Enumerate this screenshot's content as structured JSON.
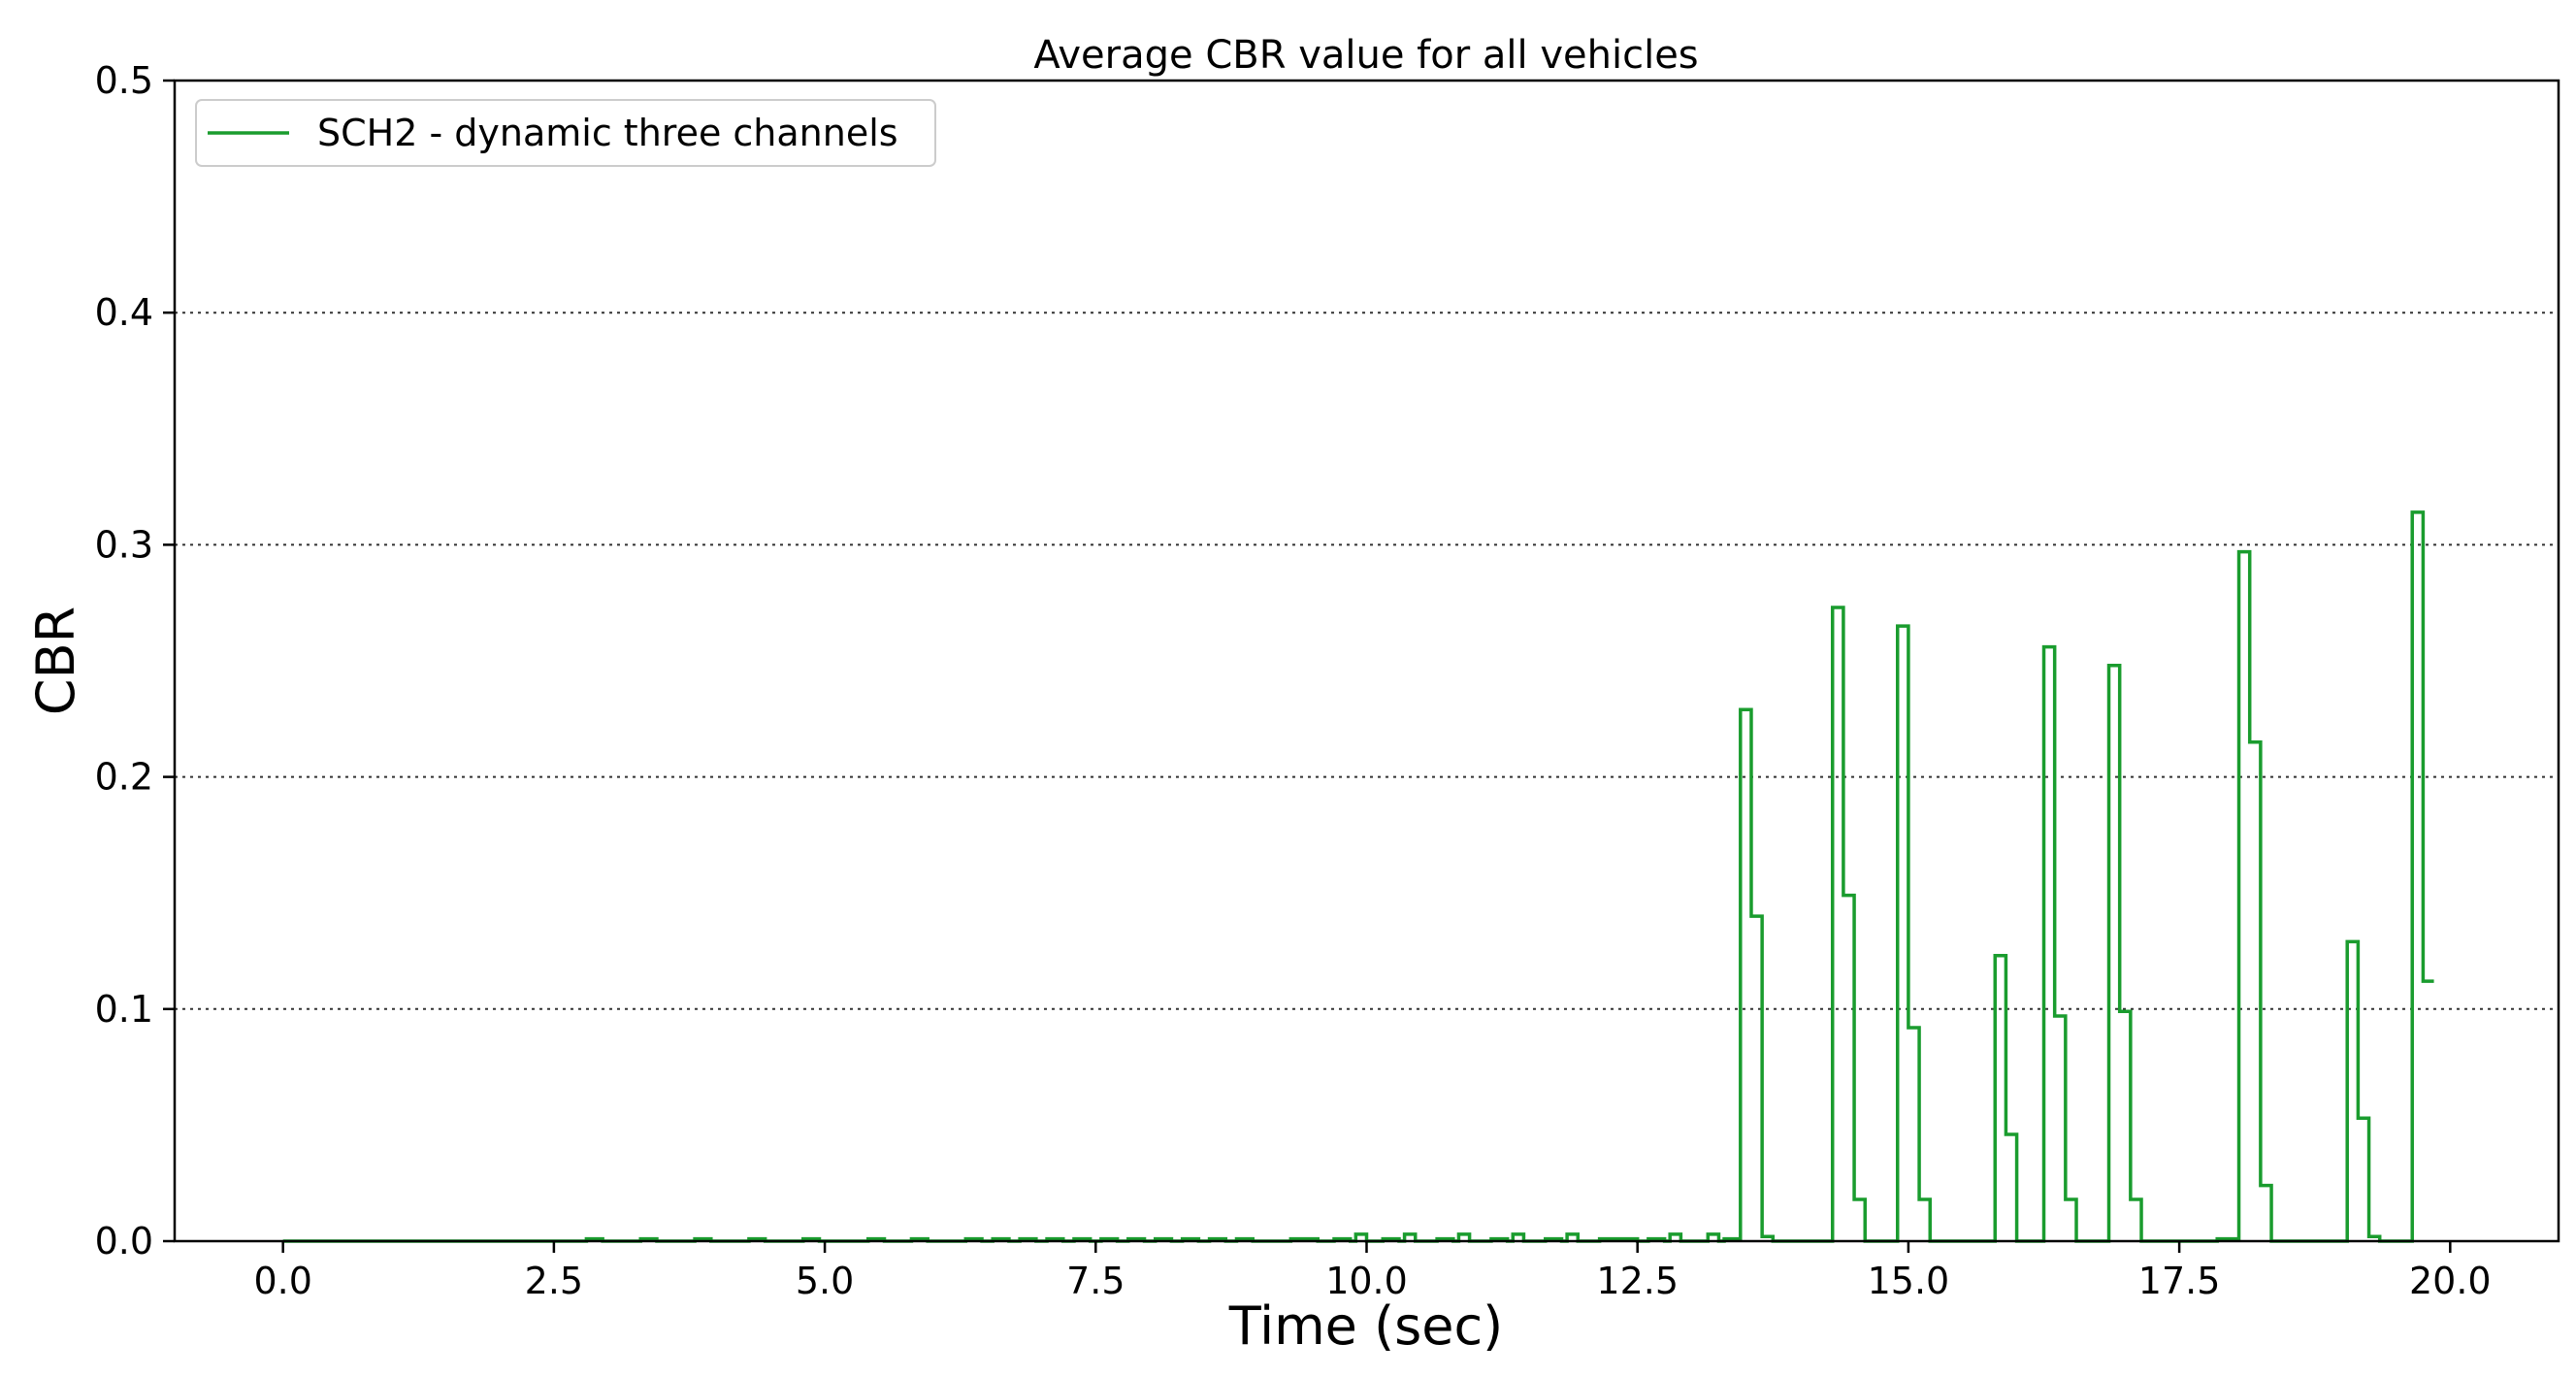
{
  "chart_data": {
    "type": "line",
    "title": "Average CBR value for all vehicles",
    "xlabel": "Time (sec)",
    "ylabel": "CBR",
    "xlim": [
      -1.0,
      21.0
    ],
    "ylim": [
      0.0,
      0.5
    ],
    "xticks": [
      "0.0",
      "2.5",
      "5.0",
      "7.5",
      "10.0",
      "12.5",
      "15.0",
      "17.5",
      "20.0"
    ],
    "yticks": [
      "0.0",
      "0.1",
      "0.2",
      "0.3",
      "0.4",
      "0.5"
    ],
    "grid": "horizontal dotted",
    "legend": "top-left",
    "colors": {
      "series": "#1a9c2e",
      "grid": "#333333",
      "axis": "#000000"
    },
    "series": [
      {
        "name": "SCH2 - dynamic three channels",
        "drawstyle": "steps",
        "points": [
          [
            0.0,
            0.0
          ],
          [
            2.8,
            0.0
          ],
          [
            2.8,
            0.001
          ],
          [
            2.95,
            0.001
          ],
          [
            2.95,
            0.0
          ],
          [
            3.3,
            0.0
          ],
          [
            3.3,
            0.001
          ],
          [
            3.45,
            0.001
          ],
          [
            3.45,
            0.0
          ],
          [
            3.8,
            0.0
          ],
          [
            3.8,
            0.001
          ],
          [
            3.95,
            0.001
          ],
          [
            3.95,
            0.0
          ],
          [
            4.3,
            0.0
          ],
          [
            4.3,
            0.001
          ],
          [
            4.45,
            0.001
          ],
          [
            4.45,
            0.0
          ],
          [
            4.8,
            0.0
          ],
          [
            4.8,
            0.001
          ],
          [
            4.95,
            0.001
          ],
          [
            4.95,
            0.0
          ],
          [
            5.4,
            0.0
          ],
          [
            5.4,
            0.001
          ],
          [
            5.55,
            0.001
          ],
          [
            5.55,
            0.0
          ],
          [
            5.8,
            0.0
          ],
          [
            5.8,
            0.001
          ],
          [
            5.95,
            0.001
          ],
          [
            5.95,
            0.0
          ],
          [
            6.3,
            0.0
          ],
          [
            6.3,
            0.001
          ],
          [
            6.45,
            0.001
          ],
          [
            6.45,
            0.0
          ],
          [
            6.55,
            0.0
          ],
          [
            6.55,
            0.001
          ],
          [
            6.7,
            0.001
          ],
          [
            6.7,
            0.0
          ],
          [
            6.8,
            0.0
          ],
          [
            6.8,
            0.001
          ],
          [
            6.95,
            0.001
          ],
          [
            6.95,
            0.0
          ],
          [
            7.05,
            0.0
          ],
          [
            7.05,
            0.001
          ],
          [
            7.2,
            0.001
          ],
          [
            7.2,
            0.0
          ],
          [
            7.3,
            0.0
          ],
          [
            7.3,
            0.001
          ],
          [
            7.45,
            0.001
          ],
          [
            7.45,
            0.0
          ],
          [
            7.55,
            0.0
          ],
          [
            7.55,
            0.001
          ],
          [
            7.7,
            0.001
          ],
          [
            7.7,
            0.0
          ],
          [
            7.8,
            0.0
          ],
          [
            7.8,
            0.001
          ],
          [
            7.95,
            0.001
          ],
          [
            7.95,
            0.0
          ],
          [
            8.05,
            0.0
          ],
          [
            8.05,
            0.001
          ],
          [
            8.2,
            0.001
          ],
          [
            8.2,
            0.0
          ],
          [
            8.3,
            0.0
          ],
          [
            8.3,
            0.001
          ],
          [
            8.45,
            0.001
          ],
          [
            8.45,
            0.0
          ],
          [
            8.55,
            0.0
          ],
          [
            8.55,
            0.001
          ],
          [
            8.7,
            0.001
          ],
          [
            8.7,
            0.0
          ],
          [
            8.8,
            0.0
          ],
          [
            8.8,
            0.001
          ],
          [
            8.95,
            0.001
          ],
          [
            8.95,
            0.0
          ],
          [
            9.3,
            0.0
          ],
          [
            9.3,
            0.001
          ],
          [
            9.55,
            0.001
          ],
          [
            9.55,
            0.0
          ],
          [
            9.7,
            0.0
          ],
          [
            9.7,
            0.001
          ],
          [
            9.85,
            0.001
          ],
          [
            9.85,
            0.0
          ],
          [
            9.9,
            0.0
          ],
          [
            9.9,
            0.003
          ],
          [
            10.0,
            0.003
          ],
          [
            10.0,
            0.0
          ],
          [
            10.15,
            0.0
          ],
          [
            10.15,
            0.001
          ],
          [
            10.3,
            0.001
          ],
          [
            10.3,
            0.0
          ],
          [
            10.35,
            0.0
          ],
          [
            10.35,
            0.003
          ],
          [
            10.45,
            0.003
          ],
          [
            10.45,
            0.0
          ],
          [
            10.65,
            0.0
          ],
          [
            10.65,
            0.001
          ],
          [
            10.8,
            0.001
          ],
          [
            10.8,
            0.0
          ],
          [
            10.85,
            0.0
          ],
          [
            10.85,
            0.003
          ],
          [
            10.95,
            0.003
          ],
          [
            10.95,
            0.0
          ],
          [
            11.15,
            0.0
          ],
          [
            11.15,
            0.001
          ],
          [
            11.3,
            0.001
          ],
          [
            11.3,
            0.0
          ],
          [
            11.35,
            0.0
          ],
          [
            11.35,
            0.003
          ],
          [
            11.45,
            0.003
          ],
          [
            11.45,
            0.0
          ],
          [
            11.65,
            0.0
          ],
          [
            11.65,
            0.001
          ],
          [
            11.8,
            0.001
          ],
          [
            11.8,
            0.0
          ],
          [
            11.85,
            0.0
          ],
          [
            11.85,
            0.003
          ],
          [
            11.95,
            0.003
          ],
          [
            11.95,
            0.0
          ],
          [
            12.15,
            0.0
          ],
          [
            12.15,
            0.001
          ],
          [
            12.5,
            0.001
          ],
          [
            12.5,
            0.0
          ],
          [
            12.6,
            0.0
          ],
          [
            12.6,
            0.001
          ],
          [
            12.75,
            0.001
          ],
          [
            12.75,
            0.0
          ],
          [
            12.8,
            0.0
          ],
          [
            12.8,
            0.003
          ],
          [
            12.9,
            0.003
          ],
          [
            12.9,
            0.0
          ],
          [
            13.15,
            0.0
          ],
          [
            13.15,
            0.003
          ],
          [
            13.25,
            0.003
          ],
          [
            13.25,
            0.0
          ],
          [
            13.3,
            0.0
          ],
          [
            13.3,
            0.001
          ],
          [
            13.45,
            0.001
          ],
          [
            13.45,
            0.229
          ],
          [
            13.55,
            0.229
          ],
          [
            13.55,
            0.14
          ],
          [
            13.65,
            0.14
          ],
          [
            13.65,
            0.002
          ],
          [
            13.75,
            0.002
          ],
          [
            13.75,
            0.0
          ],
          [
            14.3,
            0.0
          ],
          [
            14.3,
            0.273
          ],
          [
            14.4,
            0.273
          ],
          [
            14.4,
            0.149
          ],
          [
            14.5,
            0.149
          ],
          [
            14.5,
            0.018
          ],
          [
            14.6,
            0.018
          ],
          [
            14.6,
            0.0
          ],
          [
            14.9,
            0.0
          ],
          [
            14.9,
            0.265
          ],
          [
            15.0,
            0.265
          ],
          [
            15.0,
            0.092
          ],
          [
            15.1,
            0.092
          ],
          [
            15.1,
            0.018
          ],
          [
            15.2,
            0.018
          ],
          [
            15.2,
            0.0
          ],
          [
            15.8,
            0.0
          ],
          [
            15.8,
            0.123
          ],
          [
            15.9,
            0.123
          ],
          [
            15.9,
            0.046
          ],
          [
            16.0,
            0.046
          ],
          [
            16.0,
            0.0
          ],
          [
            16.25,
            0.0
          ],
          [
            16.25,
            0.256
          ],
          [
            16.35,
            0.256
          ],
          [
            16.35,
            0.097
          ],
          [
            16.45,
            0.097
          ],
          [
            16.45,
            0.018
          ],
          [
            16.55,
            0.018
          ],
          [
            16.55,
            0.0
          ],
          [
            16.85,
            0.0
          ],
          [
            16.85,
            0.248
          ],
          [
            16.95,
            0.248
          ],
          [
            16.95,
            0.099
          ],
          [
            17.05,
            0.099
          ],
          [
            17.05,
            0.018
          ],
          [
            17.15,
            0.018
          ],
          [
            17.15,
            0.0
          ],
          [
            17.85,
            0.0
          ],
          [
            17.85,
            0.001
          ],
          [
            18.05,
            0.001
          ],
          [
            18.05,
            0.297
          ],
          [
            18.15,
            0.297
          ],
          [
            18.15,
            0.215
          ],
          [
            18.25,
            0.215
          ],
          [
            18.25,
            0.024
          ],
          [
            18.35,
            0.024
          ],
          [
            18.35,
            0.0
          ],
          [
            19.05,
            0.0
          ],
          [
            19.05,
            0.129
          ],
          [
            19.15,
            0.129
          ],
          [
            19.15,
            0.053
          ],
          [
            19.25,
            0.053
          ],
          [
            19.25,
            0.002
          ],
          [
            19.35,
            0.002
          ],
          [
            19.35,
            0.0
          ],
          [
            19.65,
            0.0
          ],
          [
            19.65,
            0.314
          ],
          [
            19.75,
            0.314
          ],
          [
            19.75,
            0.112
          ],
          [
            19.85,
            0.112
          ]
        ]
      }
    ]
  }
}
